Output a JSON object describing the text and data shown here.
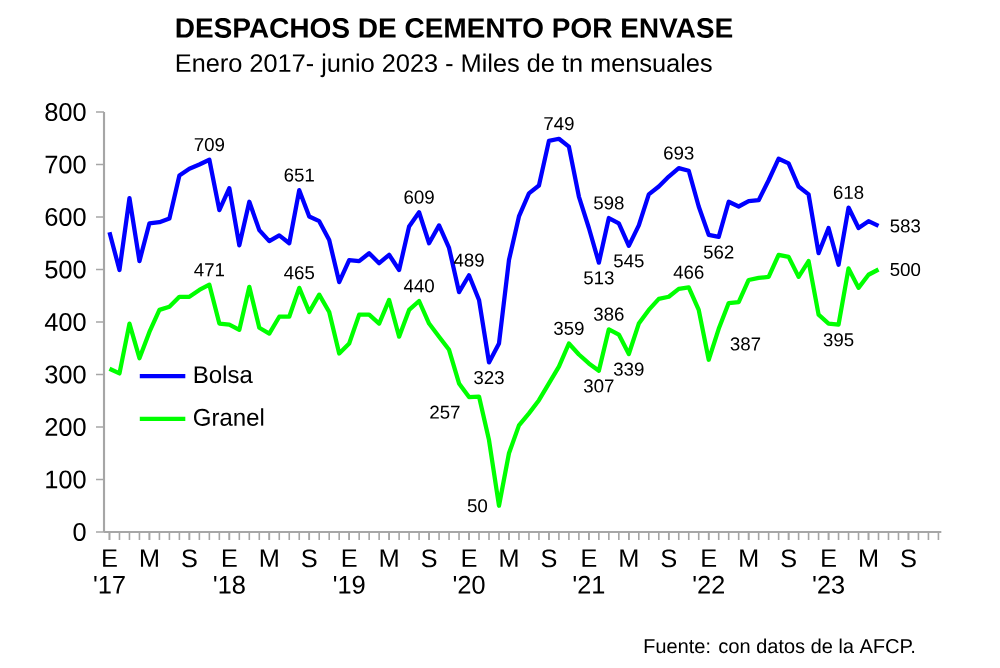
{
  "chart_data": {
    "type": "line",
    "title": "DESPACHOS DE CEMENTO POR ENVASE",
    "subtitle": "Enero 2017- junio 2023 - Miles de tn mensuales",
    "x": [
      "2017-01",
      "2017-02",
      "2017-03",
      "2017-04",
      "2017-05",
      "2017-06",
      "2017-07",
      "2017-08",
      "2017-09",
      "2017-10",
      "2017-11",
      "2017-12",
      "2018-01",
      "2018-02",
      "2018-03",
      "2018-04",
      "2018-05",
      "2018-06",
      "2018-07",
      "2018-08",
      "2018-09",
      "2018-10",
      "2018-11",
      "2018-12",
      "2019-01",
      "2019-02",
      "2019-03",
      "2019-04",
      "2019-05",
      "2019-06",
      "2019-07",
      "2019-08",
      "2019-09",
      "2019-10",
      "2019-11",
      "2019-12",
      "2020-01",
      "2020-02",
      "2020-03",
      "2020-04",
      "2020-05",
      "2020-06",
      "2020-07",
      "2020-08",
      "2020-09",
      "2020-10",
      "2020-11",
      "2020-12",
      "2021-01",
      "2021-02",
      "2021-03",
      "2021-04",
      "2021-05",
      "2021-06",
      "2021-07",
      "2021-08",
      "2021-09",
      "2021-10",
      "2021-11",
      "2021-12",
      "2022-01",
      "2022-02",
      "2022-03",
      "2022-04",
      "2022-05",
      "2022-06",
      "2022-07",
      "2022-08",
      "2022-09",
      "2022-10",
      "2022-11",
      "2022-12",
      "2023-01",
      "2023-02",
      "2023-03",
      "2023-04",
      "2023-05",
      "2023-06"
    ],
    "series": [
      {
        "name": "Bolsa",
        "color": "#0000ff",
        "values": [
          571,
          499,
          636,
          516,
          588,
          590,
          597,
          679,
          692,
          700,
          709,
          613,
          655,
          546,
          629,
          575,
          554,
          565,
          550,
          651,
          601,
          592,
          556,
          476,
          518,
          516,
          531,
          512,
          528,
          499,
          582,
          609,
          550,
          584,
          541,
          457,
          489,
          442,
          323,
          359,
          518,
          601,
          645,
          660,
          745,
          749,
          734,
          639,
          579,
          513,
          598,
          588,
          545,
          584,
          643,
          658,
          677,
          693,
          688,
          620,
          566,
          562,
          629,
          620,
          630,
          632,
          670,
          711,
          702,
          658,
          643,
          531,
          579,
          509,
          618,
          579,
          592,
          583
        ]
      },
      {
        "name": "Granel",
        "color": "#00ff00",
        "values": [
          311,
          302,
          397,
          331,
          381,
          423,
          429,
          448,
          448,
          461,
          471,
          397,
          395,
          385,
          467,
          389,
          378,
          410,
          410,
          465,
          419,
          452,
          419,
          340,
          359,
          414,
          414,
          397,
          442,
          372,
          423,
          440,
          397,
          372,
          347,
          283,
          257,
          258,
          175,
          50,
          150,
          203,
          226,
          251,
          283,
          315,
          359,
          338,
          321,
          307,
          386,
          376,
          339,
          397,
          423,
          444,
          448,
          463,
          466,
          423,
          328,
          387,
          436,
          438,
          480,
          484,
          486,
          528,
          524,
          486,
          516,
          414,
          397,
          395,
          502,
          465,
          490,
          500
        ]
      }
    ],
    "xlim": [
      "2016-12-15",
      "2023-12-10"
    ],
    "xticks": [
      {
        "value": "2017-01",
        "label": "E '17"
      },
      {
        "value": "2017-05",
        "label": "M"
      },
      {
        "value": "2017-09",
        "label": "S"
      },
      {
        "value": "2018-01",
        "label": "E '18"
      },
      {
        "value": "2018-05",
        "label": "M"
      },
      {
        "value": "2018-09",
        "label": "S"
      },
      {
        "value": "2019-01",
        "label": "E '19"
      },
      {
        "value": "2019-05",
        "label": "M"
      },
      {
        "value": "2019-09",
        "label": "S"
      },
      {
        "value": "2020-01",
        "label": "E '20"
      },
      {
        "value": "2020-05",
        "label": "M"
      },
      {
        "value": "2020-09",
        "label": "S"
      },
      {
        "value": "2021-01",
        "label": "E '21"
      },
      {
        "value": "2021-05",
        "label": "M"
      },
      {
        "value": "2021-09",
        "label": "S"
      },
      {
        "value": "2022-01",
        "label": "E '22"
      },
      {
        "value": "2022-05",
        "label": "M"
      },
      {
        "value": "2022-09",
        "label": "S"
      },
      {
        "value": "2023-01",
        "label": "E '23"
      },
      {
        "value": "2023-05",
        "label": "M"
      },
      {
        "value": "2023-09",
        "label": "S"
      }
    ],
    "ylim": [
      0,
      800
    ],
    "yticks": [
      0,
      100,
      200,
      300,
      400,
      500,
      600,
      700,
      800
    ],
    "legend": "left",
    "grid": false,
    "marker": "none",
    "line_style": "solid",
    "annotations": [
      {
        "text": "709",
        "x": "2017-11",
        "y": 709
      },
      {
        "text": "651",
        "x": "2018-08",
        "y": 651
      },
      {
        "text": "609",
        "x": "2019-08",
        "y": 609
      },
      {
        "text": "489",
        "x": "2020-01",
        "y": 489
      },
      {
        "text": "323",
        "x": "2020-03",
        "y": 323
      },
      {
        "text": "749",
        "x": "2020-10",
        "y": 749
      },
      {
        "text": "513",
        "x": "2021-02",
        "y": 513
      },
      {
        "text": "598",
        "x": "2021-03",
        "y": 598
      },
      {
        "text": "545",
        "x": "2021-05",
        "y": 545
      },
      {
        "text": "693",
        "x": "2021-10",
        "y": 693
      },
      {
        "text": "562",
        "x": "2022-02",
        "y": 562
      },
      {
        "text": "618",
        "x": "2023-03",
        "y": 618
      },
      {
        "text": "583",
        "x": "2023-06",
        "y": 583
      },
      {
        "text": "471",
        "x": "2017-11",
        "y": 471
      },
      {
        "text": "465",
        "x": "2018-08",
        "y": 465
      },
      {
        "text": "440",
        "x": "2019-08",
        "y": 440
      },
      {
        "text": "257",
        "x": "2020-01",
        "y": 257
      },
      {
        "text": "50",
        "x": "2020-04",
        "y": 50
      },
      {
        "text": "359",
        "x": "2020-11",
        "y": 359
      },
      {
        "text": "307",
        "x": "2021-02",
        "y": 307
      },
      {
        "text": "386",
        "x": "2021-03",
        "y": 386
      },
      {
        "text": "339",
        "x": "2021-05",
        "y": 339
      },
      {
        "text": "466",
        "x": "2021-11",
        "y": 466
      },
      {
        "text": "387",
        "x": "2022-02",
        "y": 387
      },
      {
        "text": "395",
        "x": "2023-02",
        "y": 395
      },
      {
        "text": "500",
        "x": "2023-06",
        "y": 500
      },
      "Fuente: con datos de la AFCP."
    ]
  }
}
